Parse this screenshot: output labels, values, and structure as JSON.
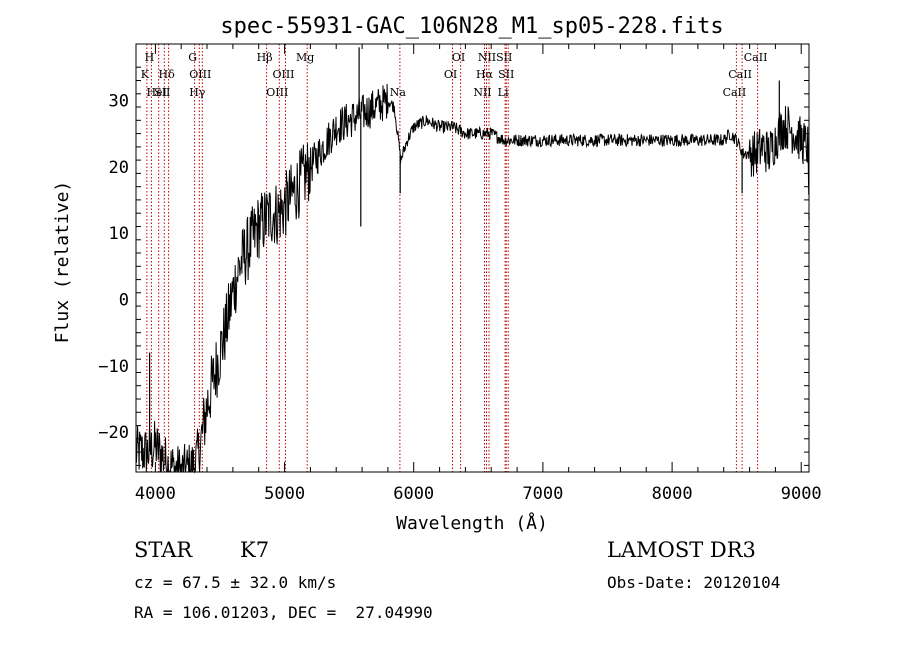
{
  "chart_data": {
    "type": "line",
    "title": "spec-55931-GAC_106N28_M1_sp05-228.fits",
    "xlabel": "Wavelength (Å)",
    "ylabel": "Flux (relative)",
    "xlim": [
      3850,
      9060
    ],
    "ylim": [
      -26,
      38.5
    ],
    "xticks": [
      4000,
      5000,
      6000,
      7000,
      8000,
      9000
    ],
    "yticks": [
      -20,
      -10,
      0,
      10,
      20,
      30
    ],
    "grid": false,
    "series": [
      {
        "name": "spectrum",
        "line_color": "#000000",
        "noise_segments": [
          {
            "x0": 3850,
            "x1": 4350,
            "amp": 2.5
          },
          {
            "x0": 4350,
            "x1": 5200,
            "amp": 3.2
          },
          {
            "x0": 5200,
            "x1": 5800,
            "amp": 1.8
          },
          {
            "x0": 5800,
            "x1": 8600,
            "amp": 0.6
          },
          {
            "x0": 8600,
            "x1": 9060,
            "amp": 2.2
          }
        ],
        "x": [
          3850,
          3950,
          4000,
          4100,
          4200,
          4300,
          4350,
          4400,
          4450,
          4500,
          4550,
          4600,
          4650,
          4700,
          4750,
          4800,
          4850,
          4900,
          4950,
          5000,
          5100,
          5200,
          5300,
          5400,
          5500,
          5600,
          5700,
          5800,
          5850,
          5900,
          5950,
          6000,
          6100,
          6200,
          6300,
          6400,
          6500,
          6600,
          6700,
          6800,
          7000,
          7200,
          7400,
          7600,
          7800,
          8000,
          8200,
          8400,
          8450,
          8500,
          8550,
          8600,
          8650,
          8700,
          8750,
          8800,
          8850,
          8900,
          8950,
          9000,
          9050,
          9060
        ],
        "y": [
          -23,
          -23,
          -22,
          -25,
          -26,
          -25,
          -22,
          -16,
          -12,
          -8,
          -4,
          1,
          5,
          7,
          9,
          11,
          12,
          13,
          13,
          14,
          17,
          20,
          23,
          26,
          27,
          28,
          29,
          30,
          29,
          21,
          24,
          26,
          27,
          26,
          26,
          25,
          25,
          25,
          24,
          24,
          24,
          24,
          24,
          24,
          24,
          24,
          24,
          24,
          25,
          24,
          22,
          22,
          22,
          23,
          22,
          24,
          26,
          26,
          25,
          24,
          23,
          12
        ]
      }
    ],
    "spikes": [
      {
        "x": 3955,
        "y": -8
      },
      {
        "x": 5577,
        "y": 38
      },
      {
        "x": 5590,
        "y": 11
      },
      {
        "x": 5895,
        "y": 16
      },
      {
        "x": 8542,
        "y": 16
      },
      {
        "x": 8830,
        "y": 33
      },
      {
        "x": 9060,
        "y": 13
      }
    ],
    "reference_lines": {
      "color": "#c00000",
      "lines": [
        {
          "x": 3934,
          "label": "K",
          "row": 1
        },
        {
          "x": 3969,
          "label": "H",
          "row": 0
        },
        {
          "x": 4026,
          "label": "HeI",
          "row": 2
        },
        {
          "x": 4069,
          "label": "SII",
          "row": 2
        },
        {
          "x": 4102,
          "label": "Hδ",
          "row": 1
        },
        {
          "x": 4304,
          "label": "G",
          "row": 0
        },
        {
          "x": 4340,
          "label": "Hγ",
          "row": 2
        },
        {
          "x": 4363,
          "label": "OIII",
          "row": 1
        },
        {
          "x": 4861,
          "label": "Hβ",
          "row": 0
        },
        {
          "x": 4959,
          "label": "OIII",
          "row": 2
        },
        {
          "x": 5007,
          "label": "OIII",
          "row": 1
        },
        {
          "x": 5175,
          "label": "Mg",
          "row": 0
        },
        {
          "x": 5893,
          "label": "Na",
          "row": 2
        },
        {
          "x": 6300,
          "label": "OI",
          "row": 1
        },
        {
          "x": 6363,
          "label": "OI",
          "row": 0
        },
        {
          "x": 6548,
          "label": "NII",
          "row": 2
        },
        {
          "x": 6563,
          "label": "Hα",
          "row": 1
        },
        {
          "x": 6583,
          "label": "NII",
          "row": 0
        },
        {
          "x": 6707,
          "label": "Li",
          "row": 2
        },
        {
          "x": 6716,
          "label": "SII",
          "row": 0
        },
        {
          "x": 6731,
          "label": "SII",
          "row": 1
        },
        {
          "x": 8498,
          "label": "CaII",
          "row": 2
        },
        {
          "x": 8542,
          "label": "CaII",
          "row": 1
        },
        {
          "x": 8662,
          "label": "CaII",
          "row": 0
        }
      ]
    }
  },
  "info": {
    "class": "STAR",
    "subclass": "K7",
    "cz": "cz = 67.5 ± 32.0 km/s",
    "radec": "RA = 106.01203, DEC =  27.04990",
    "survey": "LAMOST DR3",
    "obsdate": "Obs-Date: 20120104"
  }
}
